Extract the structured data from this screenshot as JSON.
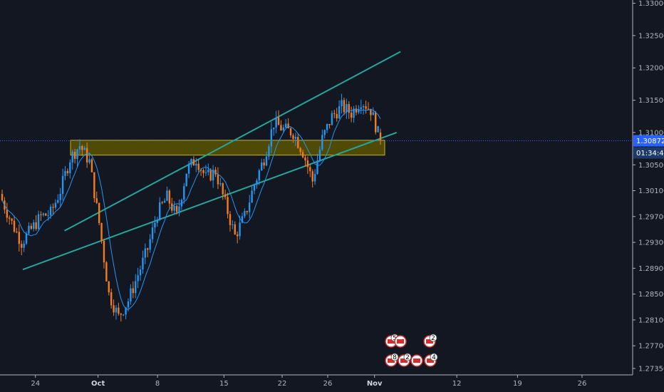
{
  "chart_data": {
    "type": "candlestick",
    "price_axis": {
      "ticks": [
        "1.33000",
        "1.32500",
        "1.32000",
        "1.31500",
        "1.31000",
        "1.30500",
        "1.30100",
        "1.29700",
        "1.29300",
        "1.28900",
        "1.28500",
        "1.28100",
        "1.27700",
        "1.27350"
      ],
      "range": [
        1.2725,
        1.3305
      ]
    },
    "time_axis": {
      "labels": [
        {
          "text": "24",
          "bold": false
        },
        {
          "text": "Oct",
          "bold": true
        },
        {
          "text": "8",
          "bold": false
        },
        {
          "text": "15",
          "bold": false
        },
        {
          "text": "22",
          "bold": false
        },
        {
          "text": "26",
          "bold": false
        },
        {
          "text": "Nov",
          "bold": true
        },
        {
          "text": "12",
          "bold": false
        },
        {
          "text": "19",
          "bold": false
        },
        {
          "text": "26",
          "bold": false
        }
      ]
    },
    "current_price": {
      "value": "1.30872",
      "countdown": "01:34:44"
    },
    "support_zone": {
      "top": 1.3088,
      "bottom": 1.3065
    },
    "channel": {
      "upper": {
        "from": [
          0.102,
          1.2948
        ],
        "to": [
          0.633,
          1.3225
        ]
      },
      "lower": {
        "from": [
          0.036,
          1.2888
        ],
        "to": [
          0.627,
          1.31
        ]
      }
    },
    "candles_summary": [
      [
        1.3005,
        1.2995,
        1.2935
      ],
      [
        1.2975,
        1.296,
        1.29
      ],
      [
        1.292,
        1.293,
        1.2905
      ],
      [
        1.2935,
        1.295,
        1.292
      ],
      [
        1.296,
        1.297,
        1.295
      ],
      [
        1.2965,
        1.2975,
        1.2958
      ],
      [
        1.298,
        1.301,
        1.297
      ],
      [
        1.303,
        1.306,
        1.302
      ],
      [
        1.3065,
        1.308,
        1.3045
      ],
      [
        1.305,
        1.3055,
        1.3
      ],
      [
        1.299,
        1.296,
        1.292
      ],
      [
        1.29,
        1.285,
        1.281
      ],
      [
        1.283,
        1.2815,
        1.28
      ],
      [
        1.2825,
        1.284,
        1.282
      ],
      [
        1.285,
        1.288,
        1.2845
      ],
      [
        1.289,
        1.292,
        1.288
      ],
      [
        1.294,
        1.2975,
        1.293
      ],
      [
        1.299,
        1.3,
        1.296
      ],
      [
        1.2975,
        1.297,
        1.2955
      ],
      [
        1.299,
        1.304,
        1.298
      ],
      [
        1.3055,
        1.306,
        1.303
      ],
      [
        1.3045,
        1.303,
        1.3015
      ],
      [
        1.303,
        1.304,
        1.302
      ],
      [
        1.302,
        1.299,
        1.2975
      ],
      [
        1.2975,
        1.294,
        1.293
      ],
      [
        1.295,
        1.297,
        1.294
      ],
      [
        1.2985,
        1.302,
        1.2975
      ],
      [
        1.304,
        1.306,
        1.303
      ],
      [
        1.308,
        1.3115,
        1.307
      ],
      [
        1.311,
        1.3105,
        1.309
      ],
      [
        1.31,
        1.31,
        1.308
      ],
      [
        1.308,
        1.307,
        1.305
      ],
      [
        1.303,
        1.3025,
        1.301
      ],
      [
        1.306,
        1.309,
        1.305
      ],
      [
        1.31,
        1.3125,
        1.309
      ],
      [
        1.312,
        1.314,
        1.311
      ],
      [
        1.313,
        1.313,
        1.311
      ],
      [
        1.314,
        1.315,
        1.312
      ],
      [
        1.315,
        1.3135,
        1.311
      ],
      [
        1.31,
        1.3087,
        1.3085
      ]
    ],
    "events": [
      {
        "row": "top",
        "num": "5"
      },
      {
        "row": "top",
        "num": ""
      },
      {
        "row": "top",
        "num": "2"
      },
      {
        "row": "bottom",
        "num": "8"
      },
      {
        "row": "bottom",
        "num": "2"
      },
      {
        "row": "bottom",
        "num": ""
      },
      {
        "row": "bottom",
        "num": "4"
      }
    ],
    "colors": {
      "background": "#131722",
      "bull": "#2196f3",
      "bear": "#f47c20",
      "channel": "#26a69a",
      "zone_fill": "#5a5300",
      "zone_border": "#c8b400",
      "price_line": "#2962ff",
      "ma": "#2196f3"
    }
  }
}
